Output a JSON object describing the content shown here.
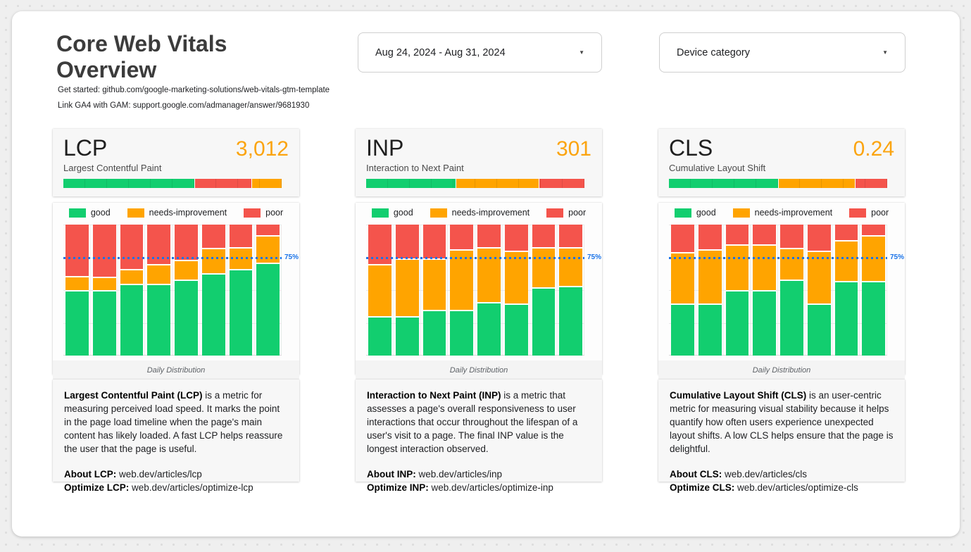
{
  "page": {
    "title": "Core Web Vitals Overview",
    "subtitle_lines": [
      "Get started: github.com/google-marketing-solutions/web-vitals-gtm-template",
      "Link GA4 with GAM: support.google.com/admanager/answer/9681930"
    ]
  },
  "filters": {
    "date_range": {
      "value": "Aug 24, 2024 - Aug 31, 2024",
      "caret": "▼"
    },
    "device_category": {
      "value": "Device category",
      "caret": "▼"
    }
  },
  "colors": {
    "good": "#12CE6F",
    "needs_improvement": "#FFA400",
    "poor": "#F4544C",
    "metric_value": "#FBA40F",
    "threshold_line": "#1A73E8"
  },
  "cards": [
    {
      "name": "LCP",
      "value": "3,012",
      "full_name": "Largest Contentful Paint",
      "description": {
        "lead_bold": "Largest Contentful Paint (LCP)",
        "lead_rest": " is a metric for measuring perceived load speed. It marks the point in the page load timeline when the page's main content has likely loaded. A fast LCP helps reassure the user that the page is useful.",
        "about_label": "About LCP:",
        "about_value": " web.dev/articles/lcp",
        "optimize_label": "Optimize LCP:",
        "optimize_value": " web.dev/articles/optimize-lcp"
      }
    },
    {
      "name": "INP",
      "value": "301",
      "full_name": "Interaction to Next Paint",
      "description": {
        "lead_bold": "Interaction to Next Paint (INP)",
        "lead_rest": " is a metric that assesses a page's overall responsiveness to user interactions that occur throughout the lifespan of a user's visit to a page. The final INP value is the longest interaction observed.",
        "about_label": "About INP:",
        "about_value": " web.dev/articles/inp",
        "optimize_label": "Optimize INP:",
        "optimize_value": " web.dev/articles/optimize-inp"
      }
    },
    {
      "name": "CLS",
      "value": "0.24",
      "full_name": "Cumulative Layout Shift",
      "description": {
        "lead_bold": "Cumulative Layout Shift (CLS)",
        "lead_rest": " is an user-centric metric for measuring visual stability because it helps quantify how often users experience unexpected layout shifts. A low CLS helps ensure that the page is delightful.",
        "about_label": "About CLS:",
        "about_value": " web.dev/articles/cls",
        "optimize_label": "Optimize CLS:",
        "optimize_value": " web.dev/articles/optimize-cls"
      }
    }
  ],
  "chart_data": [
    {
      "type": "bar",
      "subtype": "100%-stacked-columns",
      "metric": "LCP",
      "xlabel": "Daily Distribution",
      "ylim": [
        0,
        100
      ],
      "bars": 8,
      "legend_position": "top",
      "threshold": {
        "label": "75%",
        "value": 75
      },
      "summary_bar": [
        {
          "key": "good",
          "pct": 60
        },
        {
          "key": "poor",
          "pct": 26
        },
        {
          "key": "needs_improvement",
          "pct": 14
        }
      ],
      "series": [
        {
          "name": "good",
          "key": "good",
          "color": "#12CE6F",
          "values": [
            50,
            50,
            55,
            55,
            58,
            63,
            66,
            71
          ]
        },
        {
          "name": "needs-improvement",
          "key": "needs_improvement",
          "color": "#FFA400",
          "values": [
            11,
            10,
            11,
            15,
            15,
            19,
            17,
            21
          ]
        },
        {
          "name": "poor",
          "key": "poor",
          "color": "#F4544C",
          "values": [
            39,
            40,
            34,
            30,
            27,
            18,
            17,
            8
          ]
        }
      ]
    },
    {
      "type": "bar",
      "subtype": "100%-stacked-columns",
      "metric": "INP",
      "xlabel": "Daily Distribution",
      "ylim": [
        0,
        100
      ],
      "bars": 8,
      "legend_position": "top",
      "threshold": {
        "label": "75%",
        "value": 75
      },
      "summary_bar": [
        {
          "key": "good",
          "pct": 41
        },
        {
          "key": "needs_improvement",
          "pct": 38
        },
        {
          "key": "poor",
          "pct": 21
        }
      ],
      "series": [
        {
          "name": "good",
          "key": "good",
          "color": "#12CE6F",
          "values": [
            30,
            30,
            35,
            35,
            41,
            40,
            52,
            53
          ]
        },
        {
          "name": "needs-improvement",
          "key": "needs_improvement",
          "color": "#FFA400",
          "values": [
            40,
            44,
            39,
            46,
            42,
            40,
            31,
            30
          ]
        },
        {
          "name": "poor",
          "key": "poor",
          "color": "#F4544C",
          "values": [
            30,
            26,
            26,
            19,
            17,
            20,
            17,
            17
          ]
        }
      ]
    },
    {
      "type": "bar",
      "subtype": "100%-stacked-columns",
      "metric": "CLS",
      "xlabel": "Daily Distribution",
      "ylim": [
        0,
        100
      ],
      "bars": 8,
      "legend_position": "top",
      "threshold": {
        "label": "75%",
        "value": 75
      },
      "summary_bar": [
        {
          "key": "good",
          "pct": 50
        },
        {
          "key": "needs_improvement",
          "pct": 35
        },
        {
          "key": "poor",
          "pct": 15
        }
      ],
      "series": [
        {
          "name": "good",
          "key": "good",
          "color": "#12CE6F",
          "values": [
            40,
            40,
            50,
            50,
            58,
            40,
            57,
            57
          ]
        },
        {
          "name": "needs-improvement",
          "key": "needs_improvement",
          "color": "#FFA400",
          "values": [
            39,
            41,
            35,
            35,
            24,
            40,
            31,
            35
          ]
        },
        {
          "name": "poor",
          "key": "poor",
          "color": "#F4544C",
          "values": [
            21,
            19,
            15,
            15,
            18,
            20,
            12,
            8
          ]
        }
      ]
    }
  ]
}
